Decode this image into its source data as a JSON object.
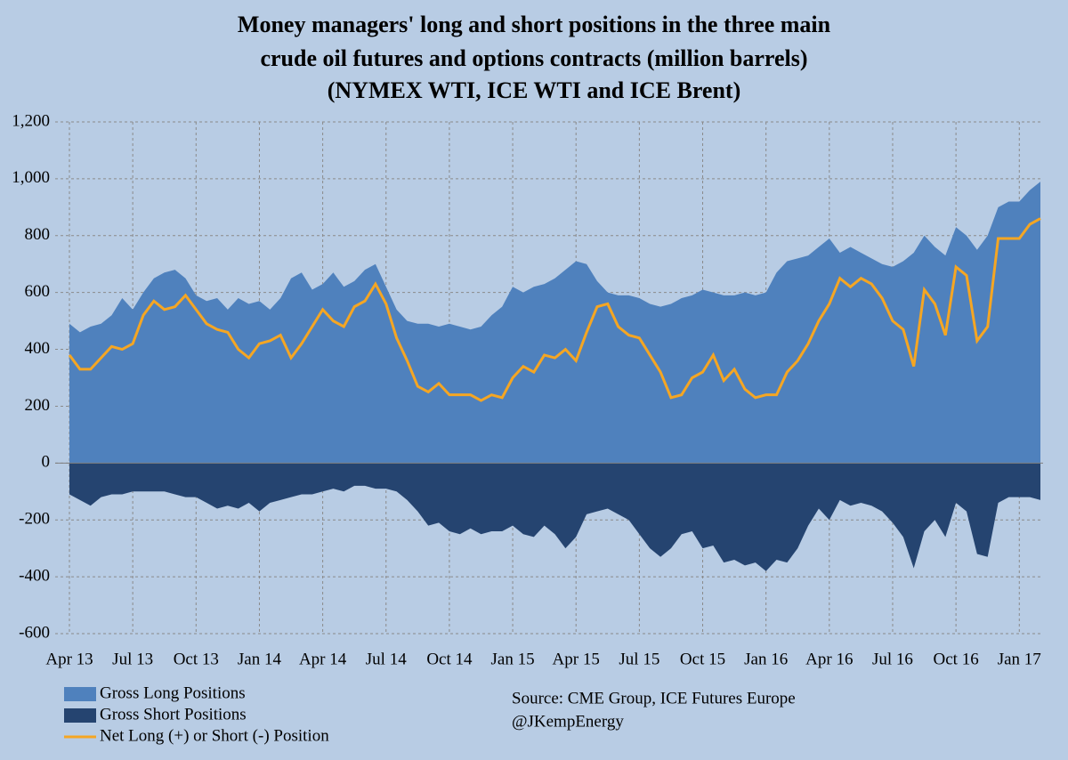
{
  "chart_data": {
    "type": "area",
    "title": [
      "Money managers' long and short positions in the three main",
      "crude oil futures and options contracts (million barrels)"
    ],
    "subtitle": "(NYMEX WTI, ICE WTI and ICE Brent)",
    "annotations": [
      "Source:  CME Group, ICE Futures Europe",
      "@JKempEnergy"
    ],
    "categories": [
      "Apr 13",
      null,
      null,
      null,
      null,
      null,
      "Jul 13",
      null,
      null,
      null,
      null,
      null,
      "Oct 13",
      null,
      null,
      null,
      null,
      null,
      "Jan 14",
      null,
      null,
      null,
      null,
      null,
      "Apr 14",
      null,
      null,
      null,
      null,
      null,
      "Jul 14",
      null,
      null,
      null,
      null,
      null,
      "Oct 14",
      null,
      null,
      null,
      null,
      null,
      "Jan 15",
      null,
      null,
      null,
      null,
      null,
      "Apr 15",
      null,
      null,
      null,
      null,
      null,
      "Jul 15",
      null,
      null,
      null,
      null,
      null,
      "Oct 15",
      null,
      null,
      null,
      null,
      null,
      "Jan 16",
      null,
      null,
      null,
      null,
      null,
      "Apr 16",
      null,
      null,
      null,
      null,
      null,
      "Jul 16",
      null,
      null,
      null,
      null,
      null,
      "Oct 16",
      null,
      null,
      null,
      null,
      null,
      "Jan 17",
      null,
      null
    ],
    "series": [
      {
        "name": "Gross Long Positions",
        "kind": "area",
        "color": "#4f81bd",
        "values": [
          490,
          460,
          480,
          490,
          520,
          580,
          540,
          600,
          650,
          670,
          680,
          650,
          590,
          570,
          580,
          540,
          580,
          560,
          570,
          540,
          580,
          650,
          670,
          610,
          630,
          670,
          620,
          640,
          680,
          700,
          620,
          540,
          500,
          490,
          490,
          480,
          490,
          480,
          470,
          480,
          520,
          550,
          620,
          600,
          620,
          630,
          650,
          680,
          710,
          700,
          640,
          600,
          590,
          590,
          580,
          560,
          550,
          560,
          580,
          590,
          610,
          600,
          590,
          590,
          600,
          590,
          600,
          670,
          710,
          720,
          730,
          760,
          790,
          740,
          760,
          740,
          720,
          700,
          690,
          710,
          740,
          800,
          760,
          730,
          830,
          800,
          750,
          800,
          900,
          920,
          920,
          960,
          990
        ]
      },
      {
        "name": "Gross Short Positions",
        "kind": "area",
        "color": "#254470",
        "values": [
          -110,
          -130,
          -150,
          -120,
          -110,
          -110,
          -100,
          -100,
          -100,
          -100,
          -110,
          -120,
          -120,
          -140,
          -160,
          -150,
          -160,
          -140,
          -170,
          -140,
          -130,
          -120,
          -110,
          -110,
          -100,
          -90,
          -100,
          -80,
          -80,
          -90,
          -90,
          -100,
          -130,
          -170,
          -220,
          -210,
          -240,
          -250,
          -230,
          -250,
          -240,
          -240,
          -220,
          -250,
          -260,
          -220,
          -250,
          -300,
          -260,
          -180,
          -170,
          -160,
          -180,
          -200,
          -250,
          -300,
          -330,
          -300,
          -250,
          -240,
          -300,
          -290,
          -350,
          -340,
          -360,
          -350,
          -380,
          -340,
          -350,
          -300,
          -220,
          -160,
          -200,
          -130,
          -150,
          -140,
          -150,
          -170,
          -210,
          -260,
          -370,
          -240,
          -200,
          -260,
          -140,
          -170,
          -320,
          -330,
          -140,
          -120,
          -120,
          -120,
          -130
        ]
      },
      {
        "name": "Net Long (+) or Short (-) Position",
        "kind": "line",
        "color": "#f5a623",
        "values": [
          380,
          330,
          330,
          370,
          410,
          400,
          420,
          520,
          570,
          540,
          550,
          590,
          540,
          490,
          470,
          460,
          400,
          370,
          420,
          430,
          450,
          370,
          420,
          480,
          540,
          500,
          480,
          550,
          570,
          630,
          560,
          440,
          360,
          270,
          250,
          280,
          240,
          240,
          240,
          220,
          240,
          230,
          300,
          340,
          320,
          380,
          370,
          400,
          360,
          460,
          550,
          560,
          480,
          450,
          440,
          380,
          320,
          230,
          240,
          300,
          320,
          380,
          290,
          330,
          260,
          230,
          240,
          240,
          320,
          360,
          420,
          500,
          560,
          650,
          620,
          650,
          630,
          580,
          500,
          470,
          340,
          610,
          560,
          450,
          690,
          660,
          430,
          480,
          790,
          790,
          790,
          840,
          860
        ]
      }
    ],
    "ylim": [
      -600,
      1200
    ],
    "yticks": [
      {
        "value": 1200,
        "label": "1,200"
      },
      {
        "value": 1000,
        "label": "1,000"
      },
      800,
      600,
      400,
      200,
      0,
      -200,
      -400,
      -600
    ],
    "grid": true
  }
}
